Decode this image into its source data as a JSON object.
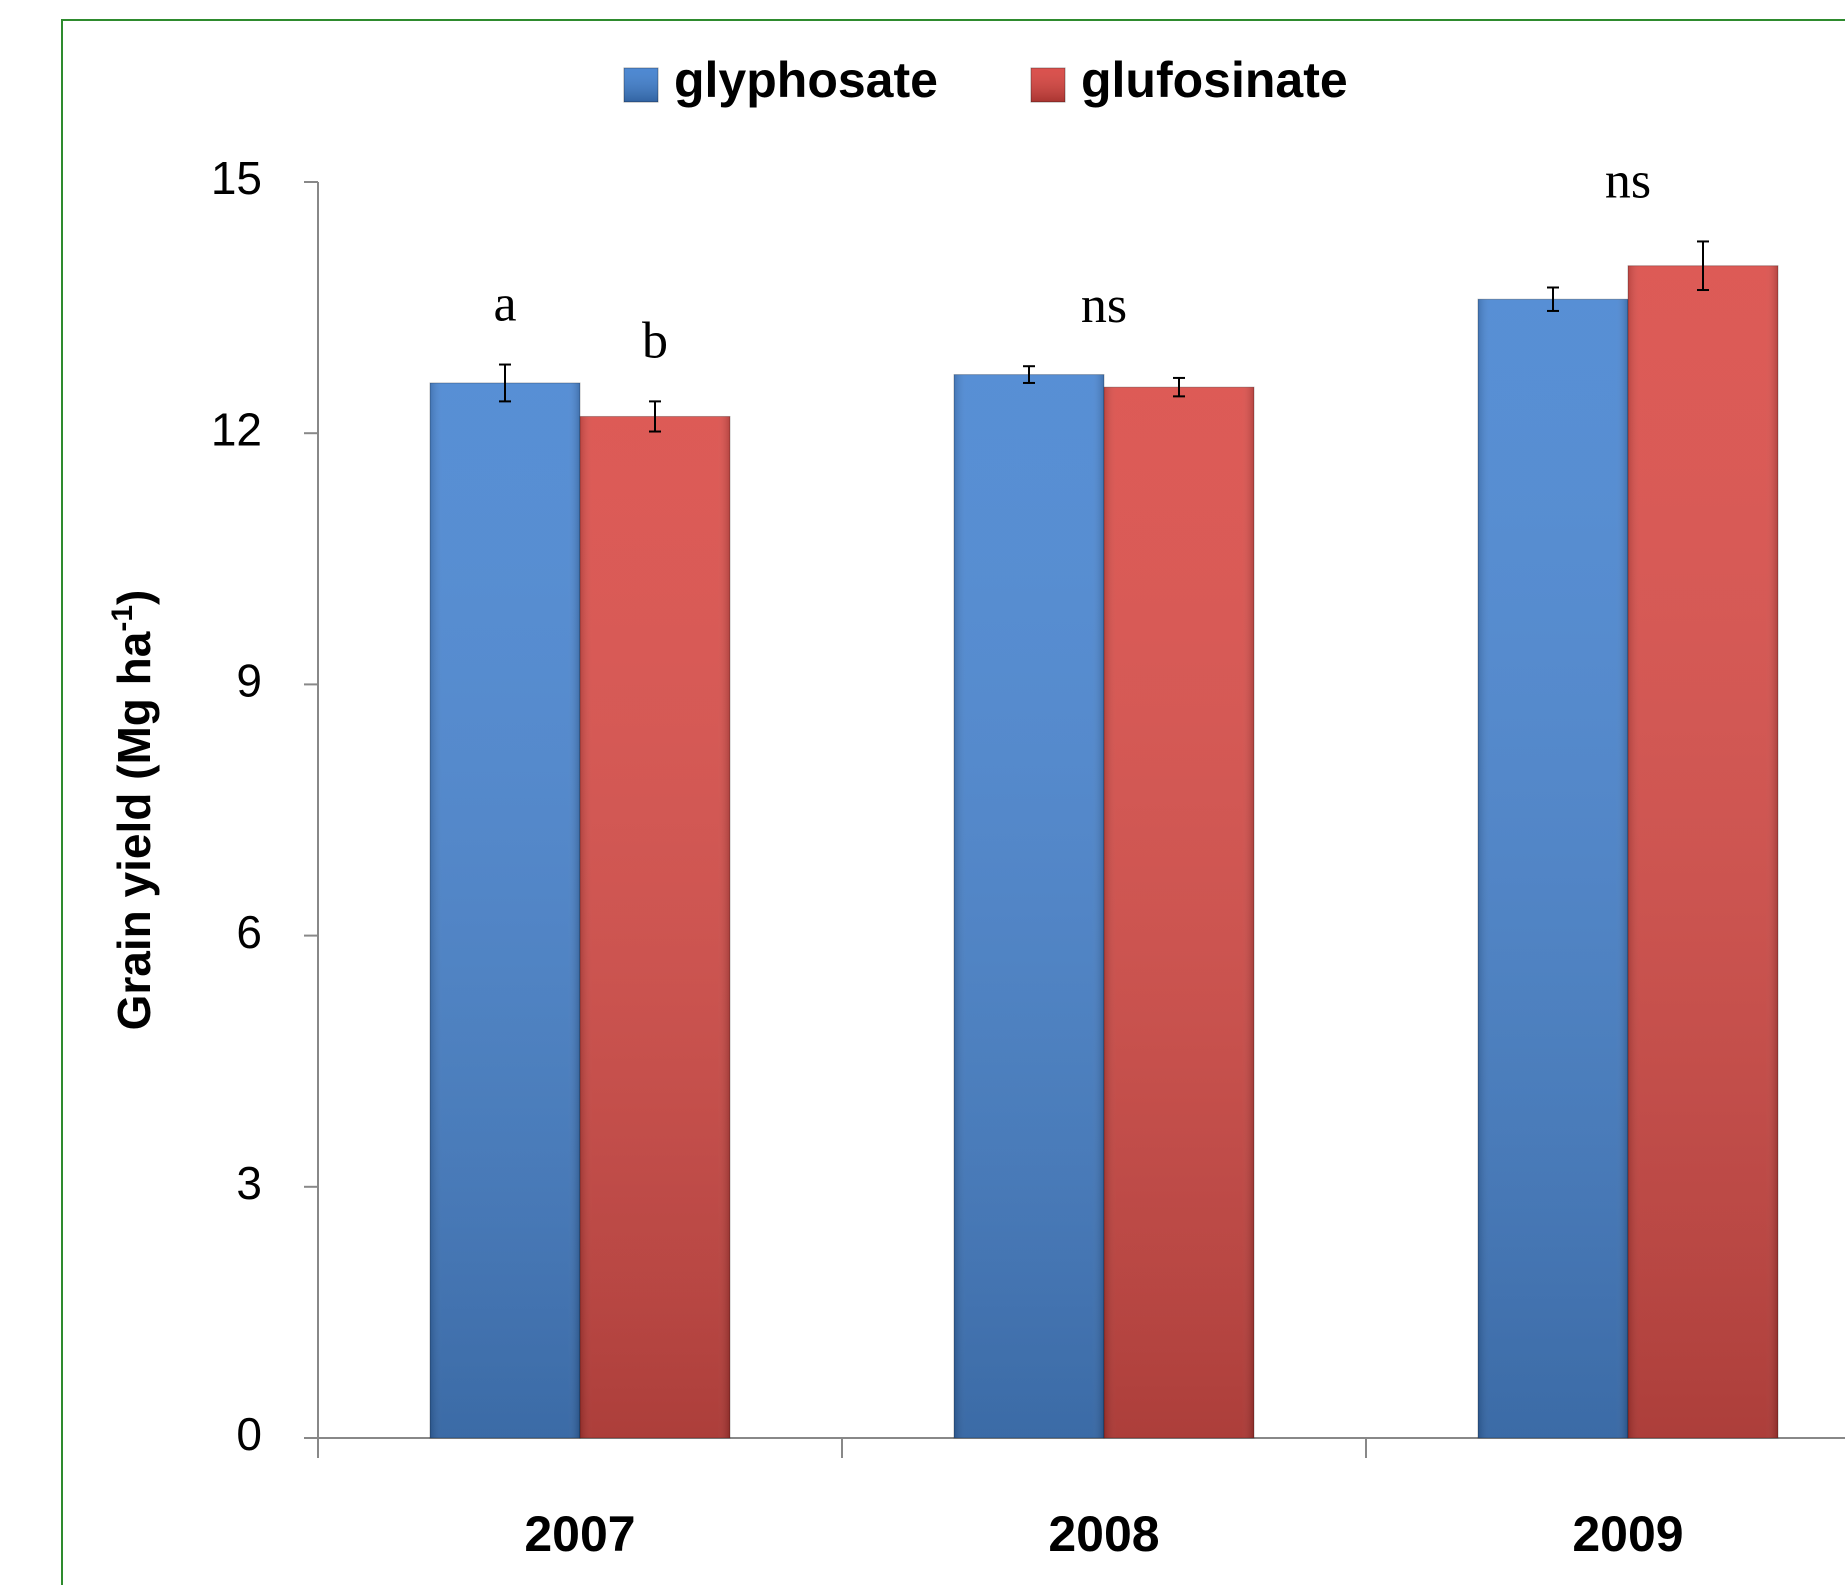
{
  "chart_data": {
    "type": "bar",
    "categories": [
      "2007",
      "2008",
      "2009"
    ],
    "series": [
      {
        "name": "glyphosate",
        "color": "#3f7fcf",
        "values": [
          12.6,
          12.7,
          13.6
        ],
        "errors": [
          0.22,
          0.1,
          0.14
        ]
      },
      {
        "name": "glufosinate",
        "color": "#d8433e",
        "values": [
          12.2,
          12.55,
          14.0
        ],
        "errors": [
          0.18,
          0.11,
          0.29
        ]
      }
    ],
    "ylabel": [
      "Grain yield (Mg ha",
      "-1",
      ")"
    ],
    "ylim": [
      0,
      15
    ],
    "yticks": [
      0,
      3,
      6,
      9,
      12,
      15
    ],
    "annotations": [
      {
        "text": "a",
        "category": "2007",
        "series": "glyphosate"
      },
      {
        "text": "b",
        "category": "2007",
        "series": "glufosinate"
      },
      {
        "text": "ns",
        "category": "2008"
      },
      {
        "text": "ns",
        "category": "2009"
      }
    ],
    "legend": "top",
    "grid": false
  }
}
